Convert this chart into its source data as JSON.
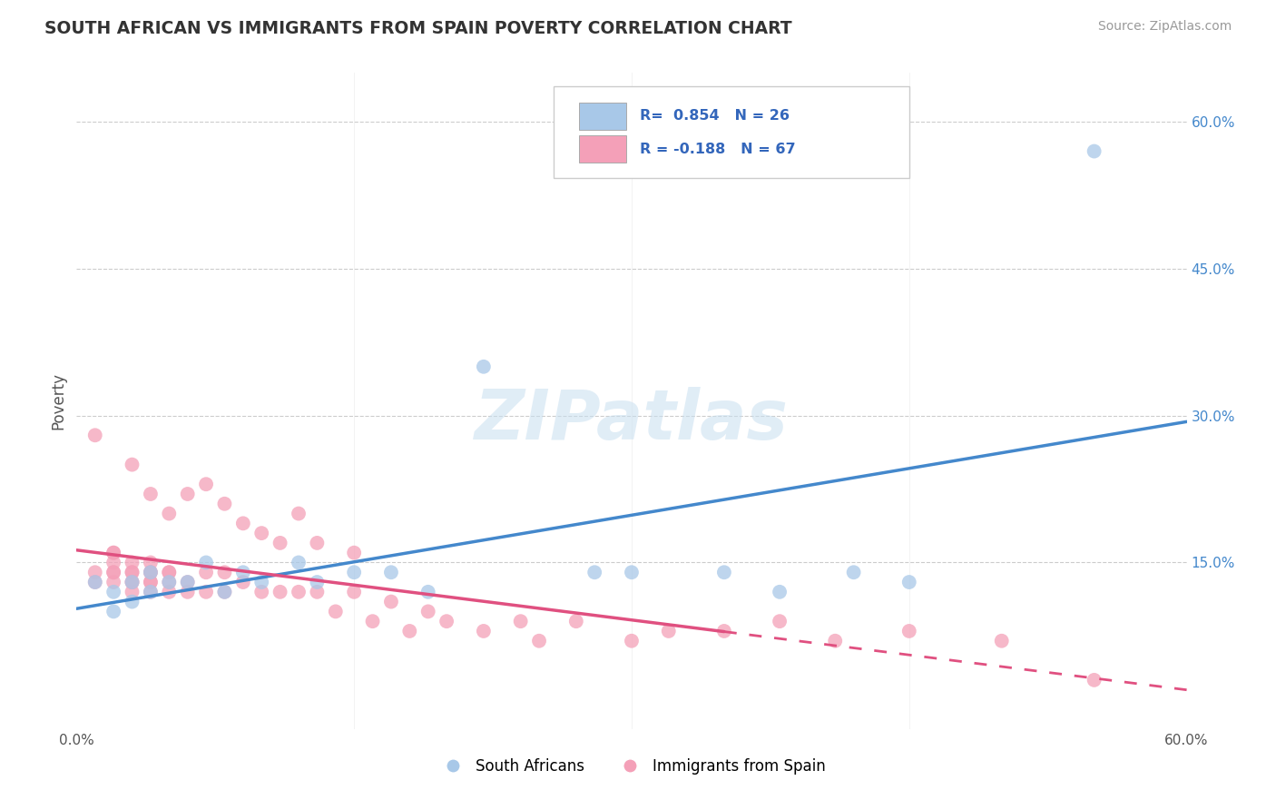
{
  "title": "SOUTH AFRICAN VS IMMIGRANTS FROM SPAIN POVERTY CORRELATION CHART",
  "source": "Source: ZipAtlas.com",
  "ylabel": "Poverty",
  "yticks": [
    0.0,
    0.15,
    0.3,
    0.45,
    0.6
  ],
  "ytick_labels": [
    "",
    "15.0%",
    "30.0%",
    "45.0%",
    "60.0%"
  ],
  "xlim": [
    0.0,
    0.6
  ],
  "ylim": [
    -0.02,
    0.65
  ],
  "blue_R": 0.854,
  "blue_N": 26,
  "pink_R": -0.188,
  "pink_N": 67,
  "blue_color": "#a8c8e8",
  "pink_color": "#f4a0b8",
  "blue_line_color": "#4488cc",
  "pink_line_color": "#e05080",
  "legend_label_color": "#3366bb",
  "legend_blue_label": "South Africans",
  "legend_pink_label": "Immigrants from Spain",
  "watermark": "ZIPatlas",
  "background_color": "#ffffff",
  "grid_color": "#cccccc",
  "title_color": "#333333",
  "source_color": "#999999",
  "blue_x": [
    0.01,
    0.02,
    0.02,
    0.03,
    0.03,
    0.04,
    0.04,
    0.05,
    0.06,
    0.07,
    0.08,
    0.09,
    0.1,
    0.12,
    0.13,
    0.15,
    0.17,
    0.19,
    0.22,
    0.28,
    0.3,
    0.35,
    0.38,
    0.42,
    0.45,
    0.55
  ],
  "blue_y": [
    0.13,
    0.1,
    0.12,
    0.11,
    0.13,
    0.12,
    0.14,
    0.13,
    0.13,
    0.15,
    0.12,
    0.14,
    0.13,
    0.15,
    0.13,
    0.14,
    0.14,
    0.12,
    0.35,
    0.14,
    0.14,
    0.14,
    0.12,
    0.14,
    0.13,
    0.57
  ],
  "pink_x": [
    0.01,
    0.01,
    0.01,
    0.02,
    0.02,
    0.02,
    0.02,
    0.02,
    0.02,
    0.03,
    0.03,
    0.03,
    0.03,
    0.03,
    0.03,
    0.03,
    0.04,
    0.04,
    0.04,
    0.04,
    0.04,
    0.04,
    0.04,
    0.05,
    0.05,
    0.05,
    0.05,
    0.05,
    0.06,
    0.06,
    0.06,
    0.07,
    0.07,
    0.07,
    0.08,
    0.08,
    0.08,
    0.09,
    0.09,
    0.1,
    0.1,
    0.11,
    0.11,
    0.12,
    0.12,
    0.13,
    0.13,
    0.14,
    0.15,
    0.15,
    0.16,
    0.17,
    0.18,
    0.19,
    0.2,
    0.22,
    0.24,
    0.25,
    0.27,
    0.3,
    0.32,
    0.35,
    0.38,
    0.41,
    0.45,
    0.5,
    0.55
  ],
  "pink_y": [
    0.13,
    0.14,
    0.28,
    0.13,
    0.14,
    0.14,
    0.15,
    0.16,
    0.16,
    0.12,
    0.13,
    0.13,
    0.14,
    0.14,
    0.15,
    0.25,
    0.12,
    0.13,
    0.13,
    0.14,
    0.14,
    0.15,
    0.22,
    0.12,
    0.13,
    0.14,
    0.14,
    0.2,
    0.12,
    0.13,
    0.22,
    0.12,
    0.14,
    0.23,
    0.12,
    0.14,
    0.21,
    0.13,
    0.19,
    0.12,
    0.18,
    0.12,
    0.17,
    0.12,
    0.2,
    0.12,
    0.17,
    0.1,
    0.12,
    0.16,
    0.09,
    0.11,
    0.08,
    0.1,
    0.09,
    0.08,
    0.09,
    0.07,
    0.09,
    0.07,
    0.08,
    0.08,
    0.09,
    0.07,
    0.08,
    0.07,
    0.03
  ]
}
